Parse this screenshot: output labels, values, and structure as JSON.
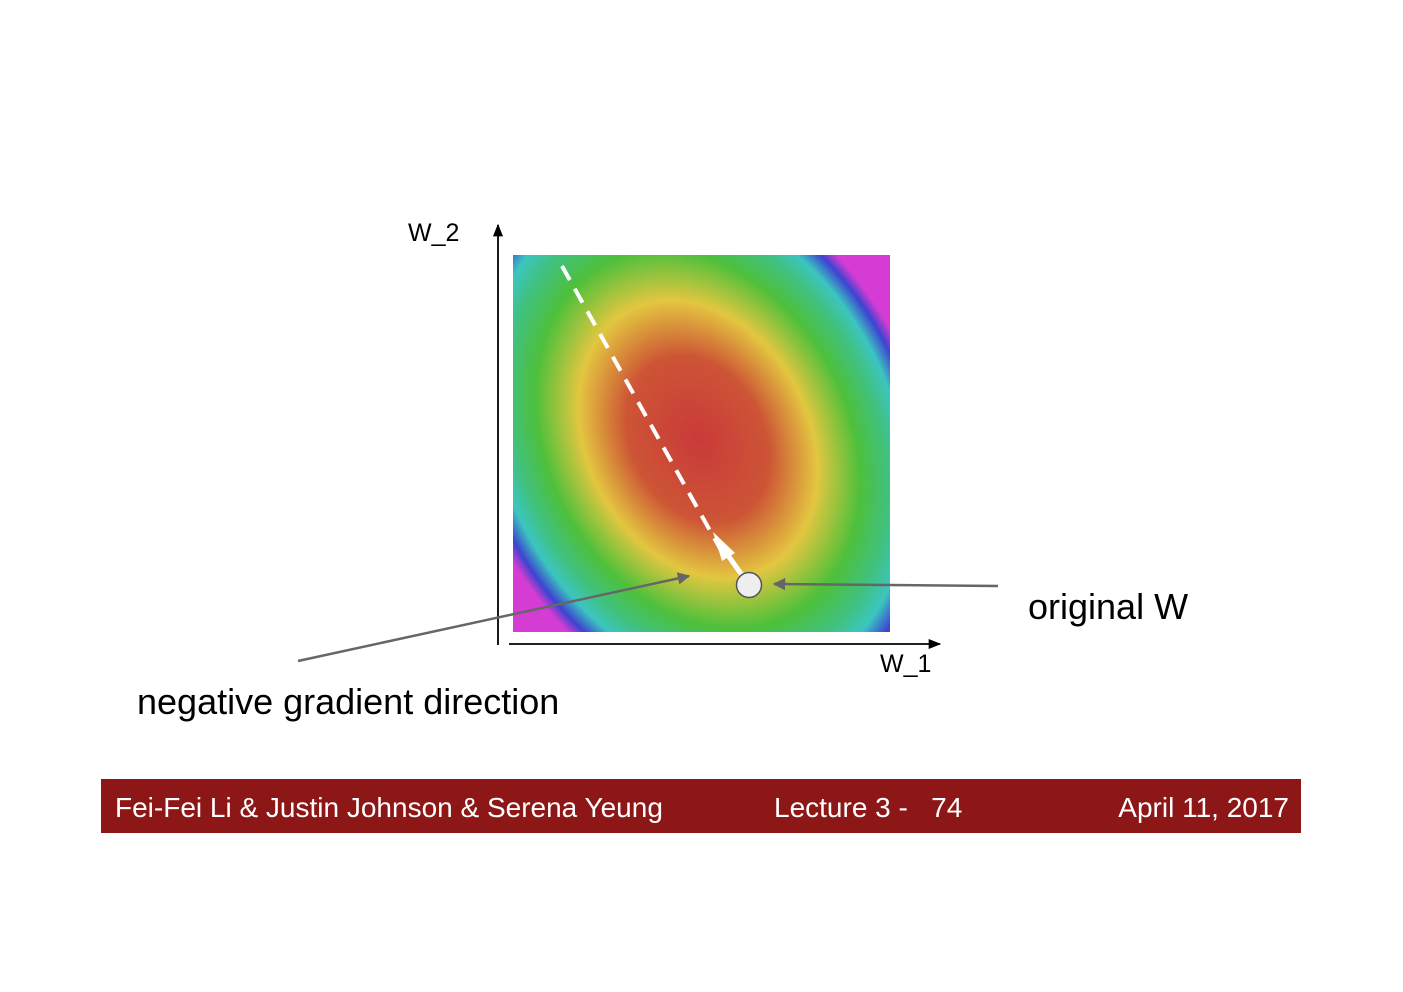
{
  "axes": {
    "x_label": "W_1",
    "y_label": "W_2"
  },
  "annotations": {
    "original_w": "original W",
    "negative_gradient": "negative gradient direction"
  },
  "colors": {
    "footer_background": "#8d1717",
    "footer_text": "#ffffff",
    "contour_center": "#c93a3a",
    "contour_outer": [
      "#e3c640",
      "#4ec03b",
      "#3cc5c0",
      "#3d44d0",
      "#d43cd3"
    ],
    "pointer_arrow": "#666666",
    "gradient_arrow": "#ffffff",
    "point_fill": "#eeeeee"
  },
  "footer": {
    "authors": "Fei-Fei Li & Justin Johnson & Serena Yeung",
    "lecture": "Lecture 3 -   74",
    "date": "April 11, 2017"
  }
}
